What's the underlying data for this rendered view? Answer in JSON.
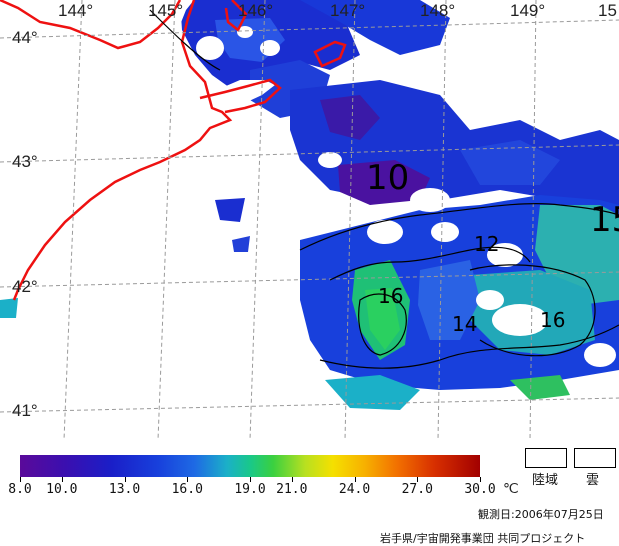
{
  "map": {
    "lon_labels": [
      "144°",
      "145°",
      "146°",
      "147°",
      "148°",
      "149°",
      "15"
    ],
    "lat_labels": [
      "44°",
      "43°",
      "42°",
      "41°"
    ],
    "contour_labels": [
      "10",
      "12",
      "16",
      "14",
      "16",
      "15"
    ],
    "colors": {
      "coast": "#ee1111",
      "grid": "#9a9a9a",
      "land": "#ffffff",
      "cloud": "#ffffff",
      "contour": "#000000"
    }
  },
  "legend": {
    "tick_labels": [
      "8.0",
      "10.0",
      "13.0",
      "16.0",
      "19.0",
      "21.0",
      "24.0",
      "27.0",
      "30.0"
    ],
    "tick_values": [
      8.0,
      10.0,
      13.0,
      16.0,
      19.0,
      21.0,
      24.0,
      27.0,
      30.0
    ],
    "range": [
      8.0,
      30.0
    ],
    "unit": "℃",
    "land_label": "陸域",
    "cloud_label": "雲"
  },
  "observation_date": "観測日:2006年07月25日",
  "credit": "岩手県/宇宙開発事業団 共同プロジェクト"
}
